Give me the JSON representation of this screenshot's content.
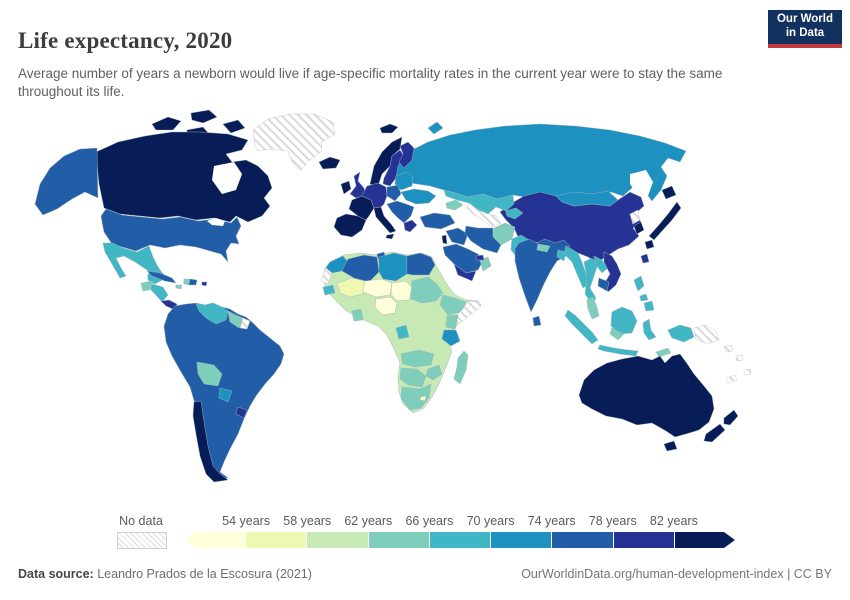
{
  "header": {
    "title": "Life expectancy, 2020",
    "subtitle": "Average number of years a newborn would live if age-specific mortality rates in the current year were to stay the same throughout its life."
  },
  "logo": {
    "line1": "Our World",
    "line2": "in Data",
    "bg_color": "#12315e",
    "accent_color": "#c03a3f"
  },
  "legend": {
    "no_data_label": "No data",
    "tick_labels": [
      "54 years",
      "58 years",
      "62 years",
      "66 years",
      "70 years",
      "74 years",
      "78 years",
      "82 years"
    ]
  },
  "footer": {
    "source_label": "Data source:",
    "source_text": " Leandro Prados de la Escosura (2021)",
    "link_text": "OurWorldinData.org/human-development-index | CC BY"
  },
  "chart_data": {
    "type": "choropleth-map",
    "title": "Life expectancy, 2020",
    "unit": "years",
    "palette": "YlGnBu (9 bins)",
    "no_data_style": "diagonal-hatch",
    "bins": [
      {
        "min": null,
        "max": 54,
        "color": "#ffffd9"
      },
      {
        "min": 54,
        "max": 58,
        "color": "#edf8b1"
      },
      {
        "min": 58,
        "max": 62,
        "color": "#c7e9b4"
      },
      {
        "min": 62,
        "max": 66,
        "color": "#7fcdbb"
      },
      {
        "min": 66,
        "max": 70,
        "color": "#41b6c4"
      },
      {
        "min": 70,
        "max": 74,
        "color": "#1d91c0"
      },
      {
        "min": 74,
        "max": 78,
        "color": "#225ea8"
      },
      {
        "min": 78,
        "max": 82,
        "color": "#253494"
      },
      {
        "min": 82,
        "max": null,
        "color": "#081d58"
      }
    ],
    "regions": {
      "greenland": "no-data",
      "canada": 9,
      "canada-arctic": 9,
      "alaska": 7,
      "usa": 7,
      "mexico": 5,
      "guatemala": 4,
      "honduras-nicaragua": 5,
      "costa-rica-panama": 8,
      "cuba": 7,
      "jamaica": 4,
      "haiti": 4,
      "dominican-republic": 7,
      "puerto-rico": 8,
      "south-america-main": 7,
      "venezuela": 5,
      "guyana": 4,
      "suriname": "no-data",
      "bolivia": 4,
      "paraguay": 6,
      "uruguay": 8,
      "chile": 9,
      "iceland": 9,
      "ireland": 9,
      "uk": 8,
      "norway": 9,
      "svalbard": 9,
      "sweden": 8,
      "finland": 8,
      "denmark": 8,
      "iberia": 9,
      "france": 9,
      "italy": 9,
      "central-europe": 8,
      "poland": 7,
      "balkans": 7,
      "greece": 8,
      "ukraine": 6,
      "belarus-baltics": 6,
      "russia": 6,
      "novaya-zemlya": 6,
      "kazakhstan": 5,
      "turkmenistan-uzbekistan": "no-data",
      "kyrgyzstan-tajikistan": 5,
      "caucasus": 4,
      "turkey": 7,
      "syria-iraq": 7,
      "israel": 9,
      "iran": 7,
      "saudi-arabia": 7,
      "yemen": 8,
      "oman": 4,
      "uae-qatar": 8,
      "afghanistan": 4,
      "pakistan": 5,
      "india": 7,
      "nepal": 4,
      "bangladesh": 5,
      "sri-lanka": 7,
      "china": 8,
      "mongolia": 6,
      "north-korea": "no-data",
      "south-korea": 9,
      "japan": 9,
      "taiwan": 8,
      "myanmar": 5,
      "thailand": 5,
      "laos": 5,
      "vietnam": 8,
      "cambodia": 7,
      "malaysia-peninsula": 4,
      "sumatra": 5,
      "java": 5,
      "borneo": 5,
      "borneo-south": 4,
      "sulawesi": 5,
      "timor": 4,
      "philippines": 5,
      "west-papua": 5,
      "papua-new-guinea": "no-data",
      "solomon-islands": "no-data",
      "new-caledonia": "no-data",
      "fiji": "no-data",
      "australia": 9,
      "tasmania": 9,
      "new-zealand": 9,
      "africa-central": 3,
      "morocco": 6,
      "western-sahara": "no-data",
      "algeria": 7,
      "tunisia": 7,
      "libya": 6,
      "egypt": 7,
      "mali": 2,
      "niger": 1,
      "chad": 1,
      "senegal": 5,
      "nigeria": 1,
      "ghana": 4,
      "sudan": 4,
      "ethiopia": 4,
      "somalia": "no-data",
      "kenya": 4,
      "tanzania": 6,
      "gabon-congo": 5,
      "angola-zambia": 4,
      "zimbabwe": 4,
      "namibia-botswana": 4,
      "south-africa": 4,
      "lesotho": 1,
      "madagascar": 4
    }
  }
}
